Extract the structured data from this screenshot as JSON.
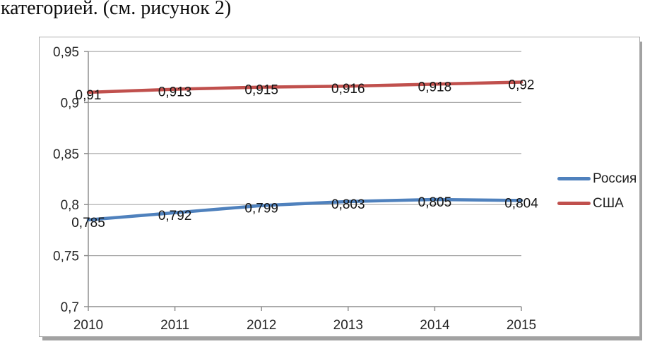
{
  "document": {
    "text_line": "категорией. (см. рисунок 2)"
  },
  "chart_data": {
    "type": "line",
    "title": "",
    "x_labels": [
      "2010",
      "2011",
      "2012",
      "2013",
      "2014",
      "2015"
    ],
    "series": [
      {
        "key": "russia",
        "name": "Россия",
        "color": "#4F81BD",
        "values": [
          0.785,
          0.792,
          0.799,
          0.803,
          0.805,
          0.804
        ],
        "value_labels": [
          "0,785",
          "0,792",
          "0,799",
          "0,803",
          "0,805",
          "0,804"
        ]
      },
      {
        "key": "usa",
        "name": "США",
        "color": "#C0504D",
        "values": [
          0.91,
          0.913,
          0.915,
          0.916,
          0.918,
          0.92
        ],
        "value_labels": [
          "0,91",
          "0,913",
          "0,915",
          "0,916",
          "0,918",
          "0,92"
        ]
      }
    ],
    "ylim": [
      0.7,
      0.95
    ],
    "yticks": [
      0.7,
      0.75,
      0.8,
      0.85,
      0.9,
      0.95
    ],
    "ytick_labels": [
      "0,7",
      "0,75",
      "0,8",
      "0,85",
      "0,9",
      "0,95"
    ],
    "grid": true,
    "legend_position": "right-middle",
    "decimal_separator": ","
  },
  "styles": {
    "grid_color": "#a8a8a8",
    "axis_color": "#8f8f8f",
    "tick_label_color": "#262626",
    "data_label_color": "#141414",
    "frame_border_color": "#ababab",
    "frame_shadow_color": "#a2a2a2",
    "background": "#ffffff"
  }
}
